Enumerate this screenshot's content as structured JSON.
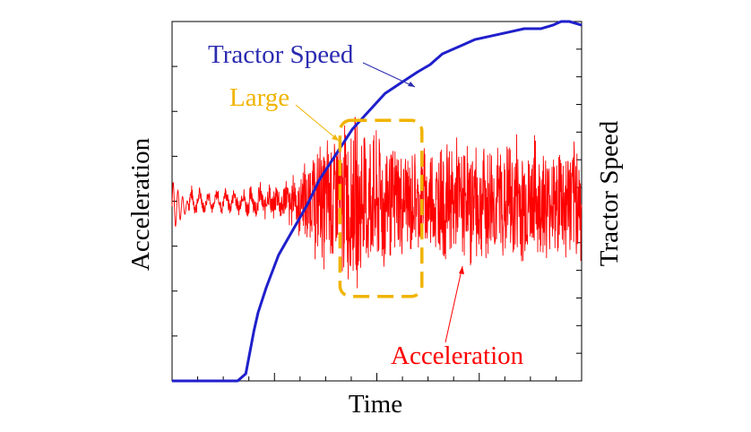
{
  "chart_data": {
    "type": "line",
    "title": "",
    "xlabel": "Time",
    "ylabel_left": "Acceleration",
    "ylabel_right": "Tractor Speed",
    "xlim": [
      0,
      100
    ],
    "ylim_left": [
      -10,
      10
    ],
    "ylim_right": [
      0,
      100
    ],
    "grid": false,
    "legend": "none (inline annotations)",
    "series": [
      {
        "name": "Tractor Speed",
        "axis": "right",
        "color": "#1f1fcc",
        "x": [
          0,
          16,
          18,
          19,
          20,
          21,
          23,
          26,
          30,
          33,
          36,
          40,
          44,
          48,
          52,
          56,
          60,
          63,
          66,
          70,
          74,
          78,
          82,
          86,
          90,
          93,
          95,
          97,
          100
        ],
        "y": [
          0,
          0,
          2,
          8,
          14,
          19,
          26,
          35,
          43,
          49,
          56,
          63,
          70,
          75,
          80,
          83,
          86,
          88,
          91,
          93,
          95,
          96,
          97,
          98,
          98,
          99,
          100,
          100,
          99
        ]
      },
      {
        "name": "Acceleration",
        "axis": "left",
        "color": "#ff0000",
        "envelope": {
          "x": [
            0,
            2,
            5,
            10,
            15,
            20,
            25,
            30,
            33,
            36,
            40,
            45,
            50,
            55,
            60,
            65,
            70,
            75,
            80,
            85,
            90,
            95,
            100
          ],
          "amplitude": [
            1.5,
            1.2,
            0.5,
            0.4,
            0.5,
            0.7,
            0.9,
            1.5,
            2.5,
            3.5,
            4.5,
            5.0,
            4.5,
            3.5,
            3.0,
            3.5,
            3.5,
            3.5,
            3.5,
            4.0,
            3.5,
            3.5,
            4.0
          ]
        }
      }
    ],
    "annotations": [
      {
        "text": "Tractor Speed",
        "color": "#2b2bb0"
      },
      {
        "text": "Large",
        "color": "#f0b400"
      },
      {
        "text": "Acceleration",
        "color": "#ff0000"
      }
    ],
    "highlight_box": {
      "x_range": [
        41,
        61
      ],
      "y_range_left": [
        -5.3,
        4.5
      ],
      "color": "#f0b400",
      "style": "dashed"
    }
  }
}
